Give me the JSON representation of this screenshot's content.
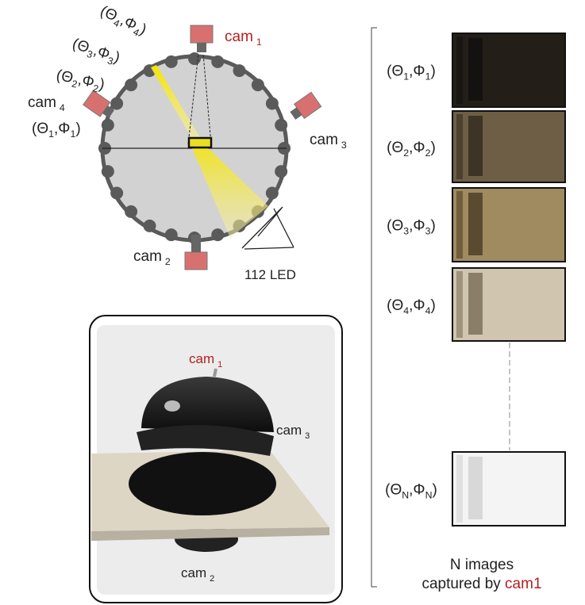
{
  "diagram": {
    "cameras": [
      {
        "name": "cam",
        "index": "1"
      },
      {
        "name": "cam",
        "index": "2"
      },
      {
        "name": "cam",
        "index": "3"
      },
      {
        "name": "cam",
        "index": "4"
      }
    ],
    "angle_labels": [
      [
        "(Θ",
        "1",
        ",Φ",
        "1",
        ")"
      ],
      [
        "(Θ",
        "2",
        ",Φ",
        "2",
        ")"
      ],
      [
        "(Θ",
        "3",
        ",Φ",
        "3",
        ")"
      ],
      [
        "(Θ",
        "4",
        ",Φ",
        "4",
        ")"
      ]
    ],
    "led_label": "112 LED"
  },
  "photo": {
    "cameras": [
      {
        "name": "cam",
        "index": "1"
      },
      {
        "name": "cam",
        "index": "3"
      },
      {
        "name": "cam",
        "index": "2"
      }
    ]
  },
  "captures": {
    "images": [
      [
        "(Θ",
        "1",
        ",Φ",
        "1",
        ")"
      ],
      [
        "(Θ",
        "2",
        ",Φ",
        "2",
        ")"
      ],
      [
        "(Θ",
        "3",
        ",Φ",
        "3",
        ")"
      ],
      [
        "(Θ",
        "4",
        ",Φ",
        "4",
        ")"
      ],
      [
        "(Θ",
        "N",
        ",Φ",
        "N",
        ")"
      ]
    ],
    "caption_line1": "N images",
    "caption_line2": "captured by ",
    "caption_cam": "cam1"
  }
}
